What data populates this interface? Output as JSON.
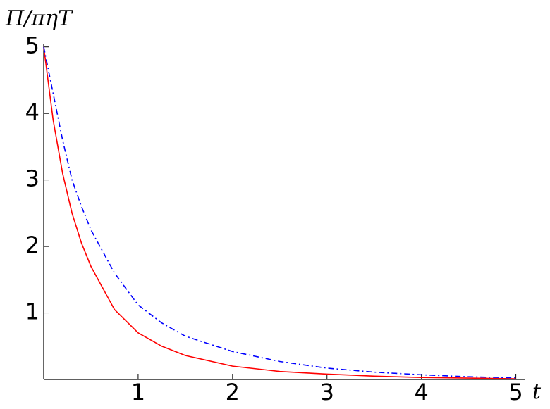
{
  "chart_data": {
    "type": "line",
    "y_label": "Π/πηT",
    "x_label": "t",
    "x": [
      0,
      0.1,
      0.2,
      0.3,
      0.4,
      0.5,
      0.75,
      1,
      1.25,
      1.5,
      2,
      2.5,
      3,
      3.5,
      4,
      4.5,
      5
    ],
    "series": [
      {
        "color": "#ff0000",
        "linestyle": "solid",
        "values": [
          5,
          3.9,
          3.1,
          2.5,
          2.05,
          1.7,
          1.05,
          0.7,
          0.5,
          0.36,
          0.2,
          0.12,
          0.08,
          0.05,
          0.03,
          0.02,
          0.01
        ]
      },
      {
        "color": "#0000ff",
        "linestyle": "dashdot",
        "values": [
          5,
          4.3,
          3.6,
          3.0,
          2.6,
          2.25,
          1.6,
          1.12,
          0.85,
          0.65,
          0.42,
          0.27,
          0.17,
          0.11,
          0.07,
          0.04,
          0.025
        ]
      }
    ],
    "xlim": [
      0,
      5.1
    ],
    "ylim": [
      0,
      5.05
    ],
    "xticks": [
      1,
      2,
      3,
      4,
      5
    ],
    "yticks": [
      1,
      2,
      3,
      4,
      5
    ]
  }
}
